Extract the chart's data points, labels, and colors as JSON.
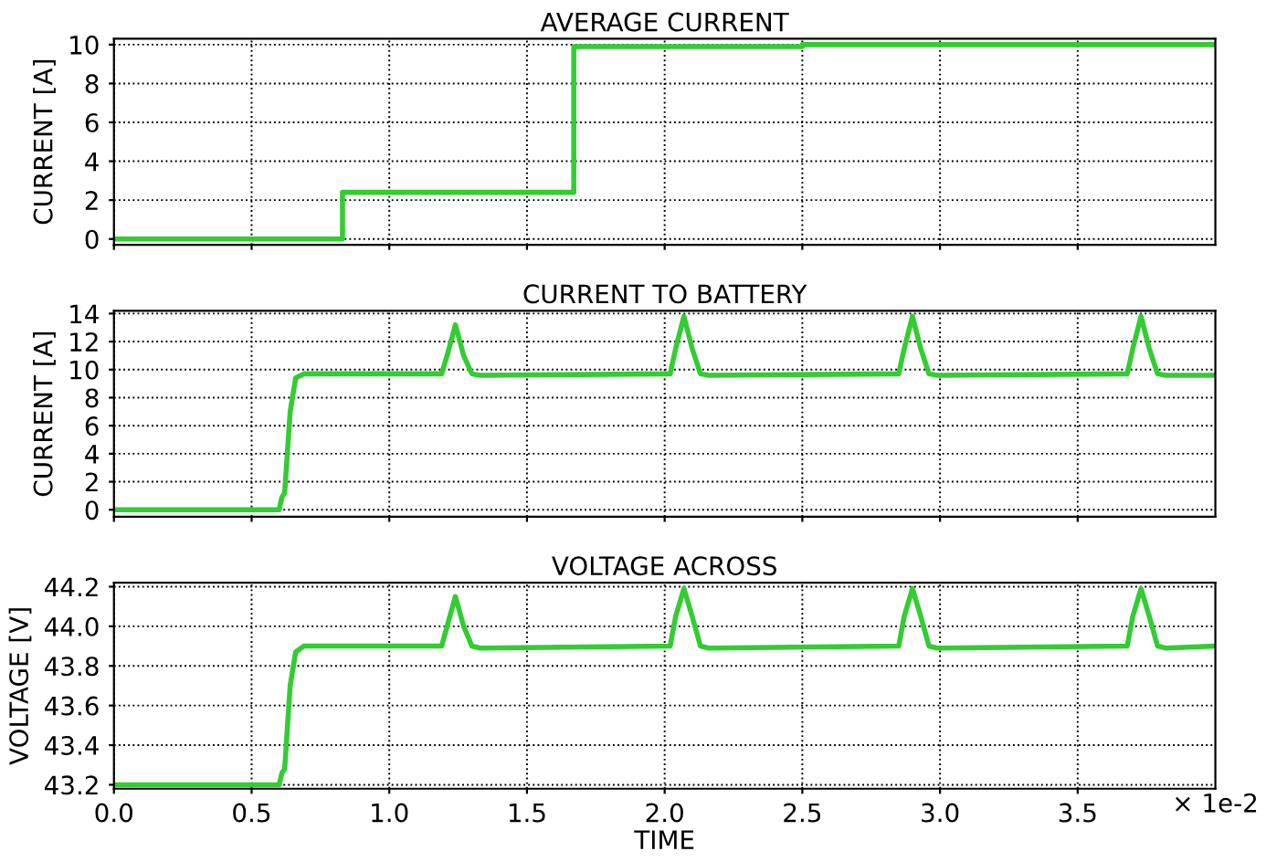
{
  "chart_data": [
    {
      "type": "step",
      "title": "AVERAGE CURRENT",
      "ylabel": "CURRENT [A]",
      "xlim": [
        0,
        4.0
      ],
      "ylim": [
        -0.3,
        10.3
      ],
      "yticks": [
        0,
        2,
        4,
        6,
        8,
        10
      ],
      "grid": true,
      "tick_labels": "y",
      "series": [
        {
          "color": "#33cc33",
          "x": [
            0,
            0.83,
            1.67,
            2.5,
            4.0
          ],
          "values": [
            0,
            2.4,
            9.9,
            10.0,
            10.0
          ]
        }
      ]
    },
    {
      "type": "line",
      "title": "CURRENT TO BATTERY",
      "ylabel": "CURRENT [A]",
      "xlim": [
        0,
        4.0
      ],
      "ylim": [
        -0.5,
        14.2
      ],
      "yticks": [
        0,
        2,
        4,
        6,
        8,
        10,
        12,
        14
      ],
      "grid": true,
      "tick_labels": "y",
      "series": [
        {
          "color": "#33cc33",
          "x": [
            0,
            0.6,
            0.61,
            0.62,
            0.64,
            0.66,
            0.69,
            1.19,
            1.21,
            1.24,
            1.27,
            1.3,
            1.33,
            2.02,
            2.04,
            2.07,
            2.1,
            2.13,
            2.16,
            2.85,
            2.87,
            2.9,
            2.93,
            2.96,
            2.99,
            3.68,
            3.7,
            3.73,
            3.76,
            3.79,
            3.82,
            4.0
          ],
          "values": [
            0,
            0,
            0.9,
            1.2,
            7.0,
            9.4,
            9.7,
            9.7,
            11.0,
            13.2,
            11.0,
            9.7,
            9.6,
            9.7,
            11.5,
            13.8,
            11.5,
            9.7,
            9.6,
            9.7,
            11.5,
            13.8,
            11.5,
            9.7,
            9.6,
            9.7,
            11.5,
            13.8,
            11.5,
            9.7,
            9.6,
            9.6
          ]
        }
      ]
    },
    {
      "type": "line",
      "title": "VOLTAGE ACROSS",
      "ylabel": "VOLTAGE [V]",
      "xlabel": "TIME",
      "annotations": [
        "× 1e-2"
      ],
      "xlim": [
        0,
        4.0
      ],
      "ylim": [
        43.18,
        44.22
      ],
      "xticks": [
        {
          "value": 0,
          "label": "0.0"
        },
        0.5,
        {
          "value": 1,
          "label": "1.0"
        },
        1.5,
        {
          "value": 2,
          "label": "2.0"
        },
        2.5,
        {
          "value": 3,
          "label": "3.0"
        },
        3.5
      ],
      "yticks": [
        {
          "value": 43.2,
          "label": "43.2"
        },
        {
          "value": 43.4,
          "label": "43.4"
        },
        {
          "value": 43.6,
          "label": "43.6"
        },
        {
          "value": 43.8,
          "label": "43.8"
        },
        {
          "value": 44.0,
          "label": "44.0"
        },
        {
          "value": 44.2,
          "label": "44.2"
        }
      ],
      "grid": true,
      "series": [
        {
          "color": "#33cc33",
          "x": [
            0,
            0.6,
            0.61,
            0.62,
            0.64,
            0.66,
            0.69,
            1.19,
            1.21,
            1.24,
            1.27,
            1.3,
            1.33,
            2.02,
            2.04,
            2.07,
            2.1,
            2.13,
            2.16,
            2.85,
            2.87,
            2.9,
            2.93,
            2.96,
            2.99,
            3.68,
            3.7,
            3.73,
            3.76,
            3.79,
            3.82,
            4.0
          ],
          "values": [
            43.2,
            43.2,
            43.26,
            43.28,
            43.7,
            43.87,
            43.9,
            43.9,
            44.0,
            44.15,
            44.0,
            43.9,
            43.89,
            43.9,
            44.05,
            44.19,
            44.05,
            43.9,
            43.89,
            43.9,
            44.05,
            44.19,
            44.05,
            43.9,
            43.89,
            43.9,
            44.05,
            44.19,
            44.05,
            43.9,
            43.89,
            43.9
          ]
        }
      ]
    }
  ]
}
